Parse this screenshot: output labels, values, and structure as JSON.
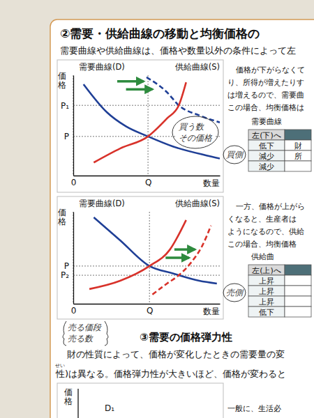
{
  "header": {
    "title": "②需要・供給曲線の移動と均衡価格の"
  },
  "intro": "需要曲線や供給曲線は、価格や数量以外の条件によって左",
  "chart_data": [
    {
      "type": "line",
      "x_label": "数量",
      "y_label": "価格",
      "xlim": [
        0,
        10
      ],
      "ylim": [
        0,
        10
      ],
      "xticks": [
        0,
        {
          "value": 5.1,
          "label": "Q"
        }
      ],
      "yticks": [
        {
          "value": 3.9,
          "label": "P"
        },
        {
          "value": 7.0,
          "label": "P₁"
        }
      ],
      "grid": true,
      "series": [
        {
          "name": "需要曲線(D)",
          "color": "#1f3f96",
          "line_style": "solid",
          "x": [
            0.7,
            2.3,
            3.6,
            5.1,
            6.8,
            9.1,
            10
          ],
          "values": [
            9.1,
            6.3,
            4.9,
            3.9,
            2.9,
            2.0,
            1.7
          ]
        },
        {
          "color": "#1f3f96",
          "line_style": "dashed",
          "x": [
            5.0,
            6.4,
            7.2,
            8.6,
            10
          ],
          "values": [
            9.8,
            8.3,
            7.0,
            6.0,
            5.3
          ]
        },
        {
          "name": "供給曲線(S)",
          "color": "#d8322a",
          "line_style": "solid",
          "x": [
            1.4,
            3.2,
            5.1,
            6.4,
            7.2,
            7.7
          ],
          "values": [
            1.3,
            2.7,
            3.9,
            5.7,
            7.0,
            9.3
          ]
        }
      ]
    },
    {
      "type": "line",
      "x_label": "数量",
      "y_label": "価格",
      "xlim": [
        0,
        10
      ],
      "ylim": [
        0,
        10
      ],
      "xticks": [
        0,
        {
          "value": 5.2,
          "label": "Q"
        }
      ],
      "yticks": [
        {
          "value": 3.1,
          "label": "P₂"
        },
        {
          "value": 4.1,
          "label": "P"
        }
      ],
      "grid": true,
      "series": [
        {
          "name": "需要曲線(D)",
          "color": "#1f3f96",
          "line_style": "solid",
          "x": [
            1.4,
            3.2,
            5.2,
            6.8,
            8.6,
            9.8
          ],
          "values": [
            9.4,
            6.9,
            4.1,
            3.3,
            2.5,
            2.2
          ]
        },
        {
          "name": "供給曲線(S)",
          "color": "#d8322a",
          "line_style": "solid",
          "x": [
            1.1,
            3.2,
            5.2,
            6.6,
            7.7
          ],
          "values": [
            1.6,
            2.5,
            4.1,
            5.9,
            9.1
          ]
        },
        {
          "color": "#d8322a",
          "line_style": "dashed",
          "x": [
            5.4,
            6.4,
            7.2,
            8.0,
            8.8,
            9.4
          ],
          "values": [
            1.0,
            2.2,
            3.1,
            4.4,
            6.3,
            8.5
          ]
        }
      ]
    }
  ],
  "side_texts": [
    {
      "lines": [
        "価格が下がらなくて",
        "り、所得が増えたりす",
        "は増えるので、需要曲",
        "この場合、均衡価格は"
      ],
      "table_title": "需要曲線",
      "table": {
        "head": [
          "左(下)へ"
        ],
        "rows": [
          [
            "低下",
            "財"
          ],
          [
            "減少",
            "所"
          ],
          [
            "減少"
          ]
        ]
      }
    },
    {
      "lines": [
        "一方、価格が上がら",
        "くなると、生産者は",
        "ようになるので、供給",
        "この場合、均衡価格"
      ],
      "table_title": "供給曲",
      "table": {
        "head": [
          "左(上)へ"
        ],
        "rows": [
          [
            "上昇"
          ],
          [
            "上昇"
          ],
          [
            "上昇"
          ],
          [
            "低下"
          ]
        ]
      }
    }
  ],
  "handwriting": [
    {
      "lines": [
        "買う数",
        "その価格"
      ]
    },
    {
      "lines": [
        "買側"
      ]
    },
    {
      "lines": [
        "売側"
      ]
    },
    {
      "lines": [
        "売る価段",
        "売る数"
      ]
    }
  ],
  "section3": {
    "title": "③需要の価格弾力性",
    "lines": [
      "財の性質によって、価格が変化したときの需要量の変",
      "性)は異なる。価格弾力性が大きいほど、価格が変わると"
    ],
    "ruby": "せい"
  },
  "figure3": {
    "y_label": "価格",
    "curve_label": "D₁",
    "side_text": "一般に、生活必"
  }
}
